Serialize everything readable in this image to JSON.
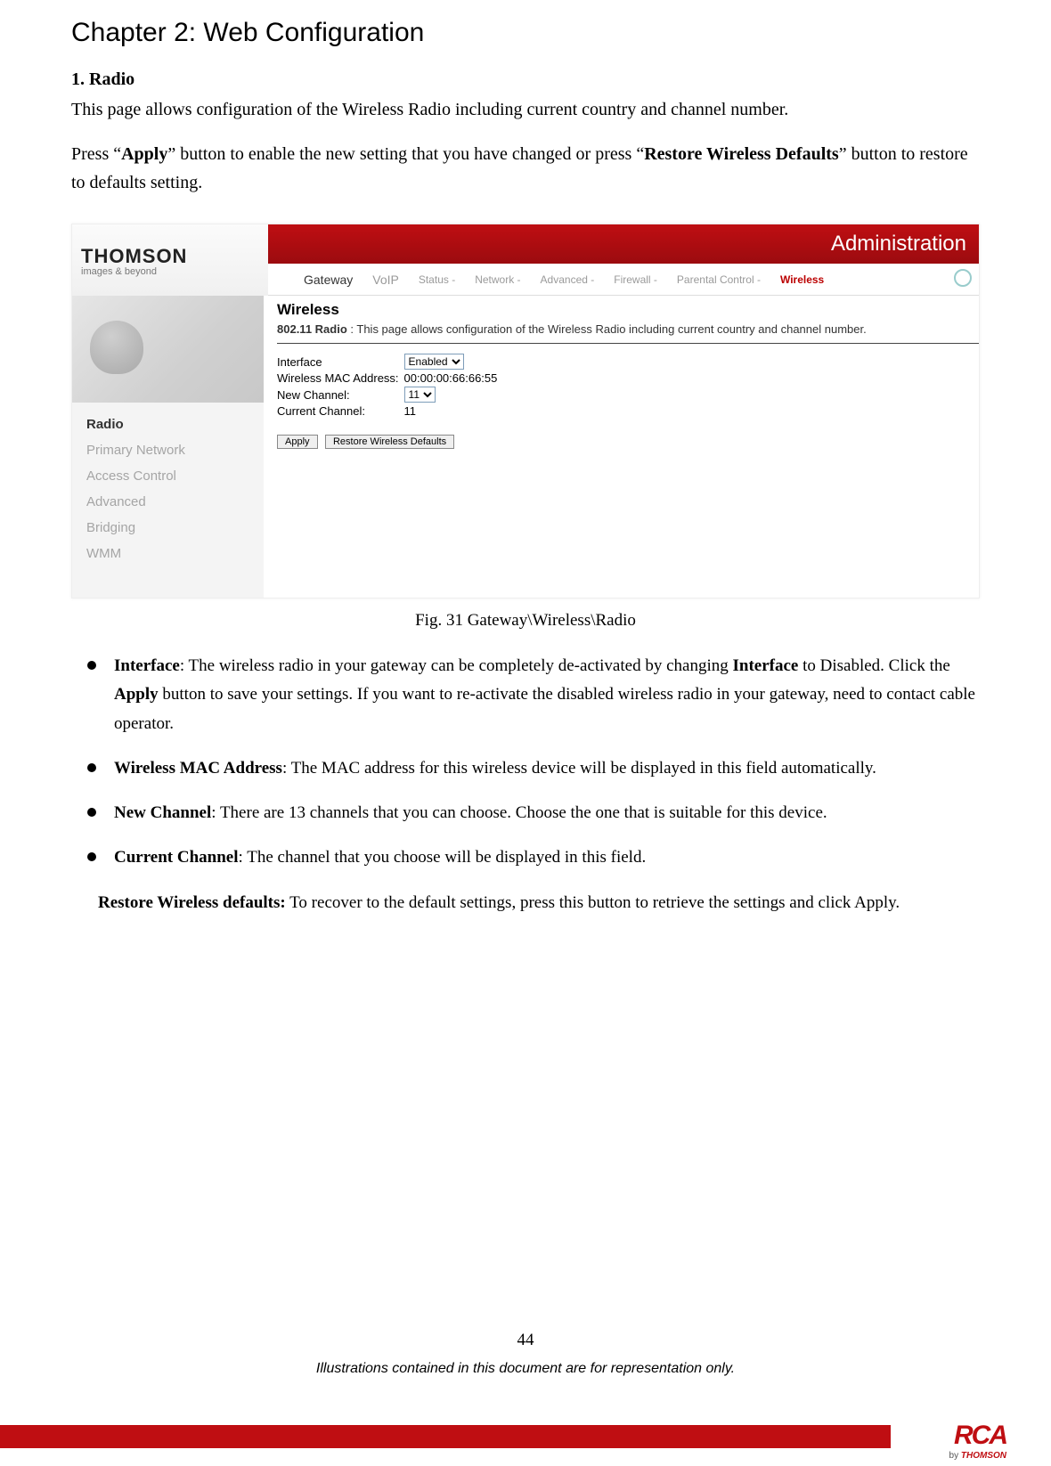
{
  "chapter_title": "Chapter 2: Web Configuration",
  "section_title": "1. Radio",
  "intro_para": "This page allows configuration of the Wireless Radio including current country and channel number.",
  "press_para_pre": "Press “",
  "press_apply": "Apply",
  "press_para_mid": "” button to enable the new setting that you have changed or press “",
  "press_restore": "Restore Wireless Defaults",
  "press_para_post": "” button to restore to defaults setting.",
  "shot": {
    "logo_line1": "THOMSON",
    "logo_line2": "images & beyond",
    "admin_title": "Administration",
    "topnav_main1": "Gateway",
    "topnav_main2": "VoIP",
    "topnav_sub1": "Status -",
    "topnav_sub2": "Network -",
    "topnav_sub3": "Advanced -",
    "topnav_sub4": "Firewall -",
    "topnav_sub5": "Parental Control -",
    "topnav_sub6": "Wireless",
    "sidebar": {
      "item0": "Radio",
      "item1": "Primary Network",
      "item2": "Access Control",
      "item3": "Advanced",
      "item4": "Bridging",
      "item5": "WMM"
    },
    "main": {
      "heading": "Wireless",
      "sub802_label": "802.11 Radio",
      "sub802_sep": " : ",
      "sub802_desc": "This page allows configuration of the Wireless Radio including current country and channel number.",
      "row1_label": "Interface",
      "row1_value": "Enabled",
      "row2_label": "Wireless MAC Address:",
      "row2_value": "00:00:00:66:66:55",
      "row3_label": "New Channel:",
      "row3_value": "11",
      "row4_label": "Current Channel:",
      "row4_value": "11",
      "btn_apply": "Apply",
      "btn_restore": "Restore Wireless Defaults"
    }
  },
  "figure_caption": "Fig. 31 Gateway\\Wireless\\Radio",
  "bullets": {
    "b1_label": "Interface",
    "b1_text": ": The wireless radio in your gateway can be completely de-activated by changing ",
    "b1_interface2": "Interface",
    "b1_text2": " to Disabled. Click the ",
    "b1_apply": "Apply",
    "b1_text3": " button to save your settings. If you want to re-activate the disabled wireless radio in your gateway, need to contact cable operator.",
    "b2_label": "Wireless MAC Address",
    "b2_text": ": The MAC address for this wireless device will be displayed in this field automatically.",
    "b3_label": "New Channel",
    "b3_text": ": There are 13 channels that you can choose. Choose the one that is suitable for this device.",
    "b4_label": "Current Channel",
    "b4_text": ": The channel that you choose will be displayed in this field."
  },
  "restore_label": "Restore Wireless defaults:",
  "restore_text": " To recover to the default settings, press this button to retrieve the settings and click Apply.",
  "page_number": "44",
  "disclaimer": "Illustrations contained in this document are for representation only.",
  "footer_rca": "RCA",
  "footer_by_pre": "by ",
  "footer_by_brand": "THOMSON"
}
